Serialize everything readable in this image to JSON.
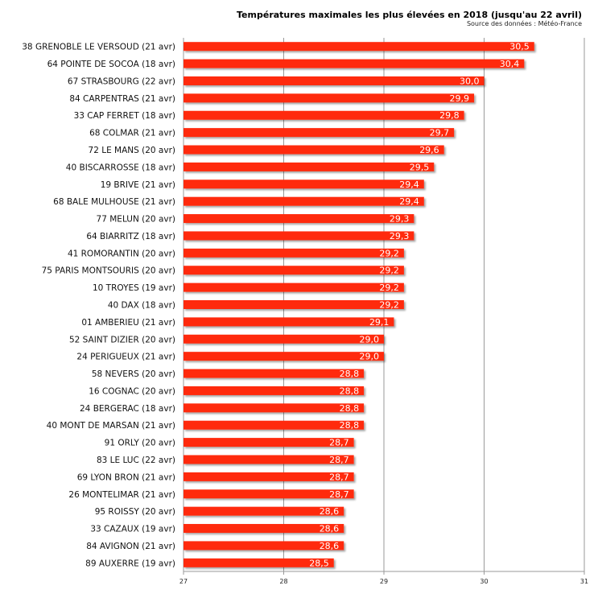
{
  "chart_data": {
    "type": "bar",
    "orientation": "horizontal",
    "title": "Températures maximales les plus élevées en 2018 (jusqu'au 22 avril)",
    "subtitle": "Source des données : Météo-France",
    "xlabel": "",
    "ylabel": "",
    "xlim": [
      27,
      31
    ],
    "xticks": [
      "27",
      "28",
      "29",
      "30",
      "31"
    ],
    "grid": true,
    "bar_color": "#ff2a0d",
    "categories": [
      "38 GRENOBLE LE VERSOUD (21 avr)",
      "64 POINTE DE SOCOA (18 avr)",
      "67 STRASBOURG (22 avr)",
      "84 CARPENTRAS (21 avr)",
      "33 CAP FERRET (18 avr)",
      "68 COLMAR (21 avr)",
      "72 LE MANS (20 avr)",
      "40 BISCARROSSE (18 avr)",
      "19 BRIVE (21 avr)",
      "68 BALE MULHOUSE (21 avr)",
      "77 MELUN (20 avr)",
      "64 BIARRITZ (18 avr)",
      "41 ROMORANTIN (20 avr)",
      "75 PARIS MONTSOURIS (20 avr)",
      "10 TROYES (19 avr)",
      "40 DAX (18 avr)",
      "01 AMBERIEU (21 avr)",
      "52 SAINT DIZIER (20 avr)",
      "24 PERIGUEUX (21 avr)",
      "58 NEVERS (20 avr)",
      "16 COGNAC (20 avr)",
      "24 BERGERAC (18 avr)",
      "40 MONT DE MARSAN (21 avr)",
      "91 ORLY (20 avr)",
      "83 LE LUC (22 avr)",
      "69 LYON BRON (21 avr)",
      "26 MONTELIMAR (21 avr)",
      "95 ROISSY (20 avr)",
      "33 CAZAUX (19 avr)",
      "84 AVIGNON (21 avr)",
      "89 AUXERRE (19 avr)"
    ],
    "values": [
      30.5,
      30.4,
      30.0,
      29.9,
      29.8,
      29.7,
      29.6,
      29.5,
      29.4,
      29.4,
      29.3,
      29.3,
      29.2,
      29.2,
      29.2,
      29.2,
      29.1,
      29.0,
      29.0,
      28.8,
      28.8,
      28.8,
      28.8,
      28.7,
      28.7,
      28.7,
      28.7,
      28.6,
      28.6,
      28.6,
      28.5
    ],
    "data_labels": [
      "30,5",
      "30,4",
      "30,0",
      "29,9",
      "29,8",
      "29,7",
      "29,6",
      "29,5",
      "29,4",
      "29,4",
      "29,3",
      "29,3",
      "29,2",
      "29,2",
      "29,2",
      "29,2",
      "29,1",
      "29,0",
      "29,0",
      "28,8",
      "28,8",
      "28,8",
      "28,8",
      "28,7",
      "28,7",
      "28,7",
      "28,7",
      "28,6",
      "28,6",
      "28,6",
      "28,5"
    ]
  }
}
